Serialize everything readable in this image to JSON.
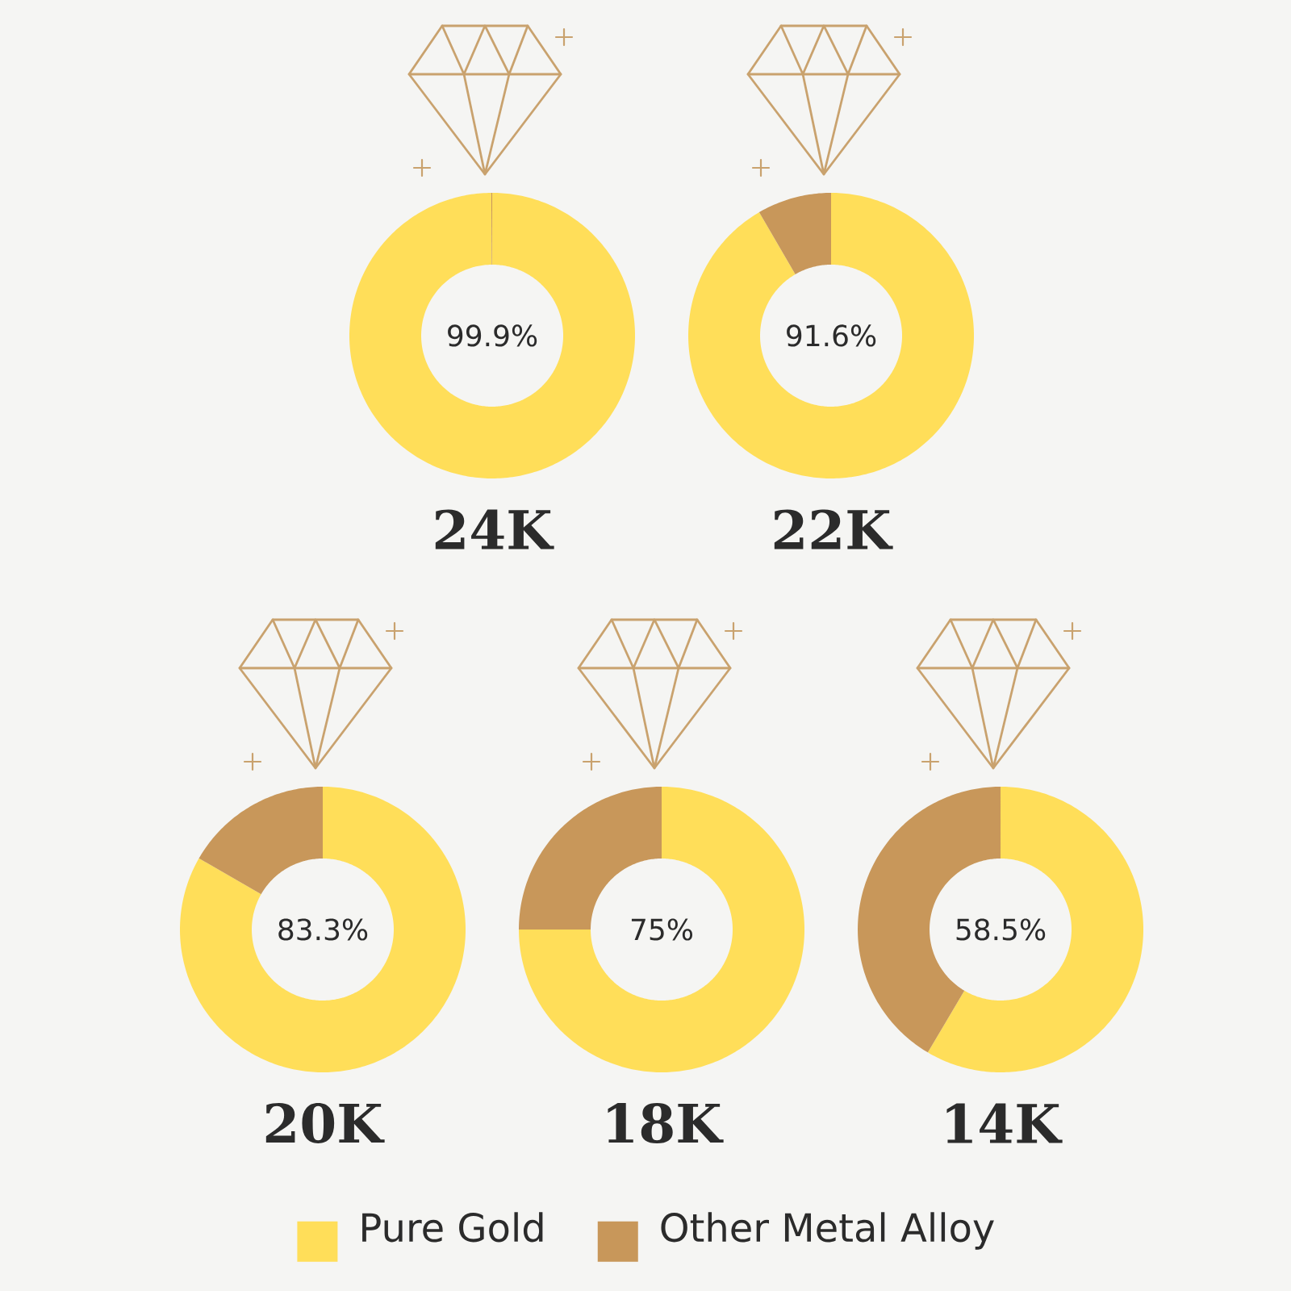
{
  "chart_data": [
    {
      "type": "donut",
      "title": "24K",
      "values": [
        99.9,
        0.1
      ],
      "colors": [
        "#ffde59",
        "#c8975a"
      ],
      "value_labels": [
        "99.9%",
        null
      ]
    },
    {
      "type": "donut",
      "title": "22K",
      "values": [
        91.6,
        8.4
      ],
      "colors": [
        "#ffde59",
        "#c8975a"
      ],
      "value_labels": [
        "91.6%",
        null
      ]
    },
    {
      "type": "donut",
      "title": "20K",
      "categories": [
        "Pure Gold",
        "Other Metal Alloy"
      ],
      "values": [
        83.3,
        16.7
      ],
      "colors": [
        "#ffde59",
        "#c8975a"
      ],
      "value_labels": [
        "83.3%",
        null
      ],
      "legend": "bottom"
    },
    {
      "type": "donut",
      "title": "18K",
      "values": [
        75,
        25
      ],
      "colors": [
        "#ffde59",
        "#c8975a"
      ],
      "value_labels": [
        "75%",
        null
      ]
    },
    {
      "type": "donut",
      "title": "14K",
      "values": [
        58.5,
        41.5
      ],
      "colors": [
        "#ffde59",
        "#c8975a"
      ],
      "value_labels": [
        "58.5%",
        null
      ]
    }
  ]
}
